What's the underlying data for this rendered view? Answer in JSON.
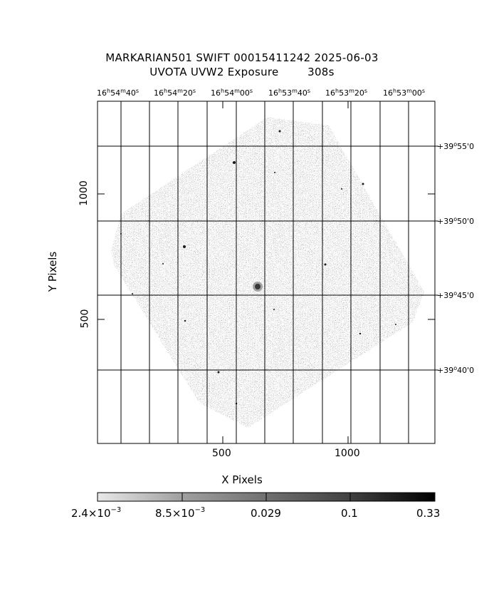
{
  "title_line1": "MARKARIAN501 SWIFT 00015411242 2025-06-03",
  "title_line2": "UVOTA UVW2 Exposure        308s",
  "ra_labels": [
    {
      "h": "16",
      "m": "54",
      "s": "40"
    },
    {
      "h": "16",
      "m": "54",
      "s": "20"
    },
    {
      "h": "16",
      "m": "54",
      "s": "00"
    },
    {
      "h": "16",
      "m": "53",
      "s": "40"
    },
    {
      "h": "16",
      "m": "53",
      "s": "20"
    },
    {
      "h": "16",
      "m": "53",
      "s": "00"
    }
  ],
  "dec_labels": [
    {
      "d": "+39",
      "m": "55",
      "s": "0"
    },
    {
      "d": "+39",
      "m": "50",
      "s": "0"
    },
    {
      "d": "+39",
      "m": "45",
      "s": "0"
    },
    {
      "d": "+39",
      "m": "40",
      "s": "0"
    }
  ],
  "x_axis": {
    "label": "X Pixels",
    "ticks": [
      "500",
      "1000"
    ]
  },
  "y_axis": {
    "label": "Y Pixels",
    "ticks": [
      "1000",
      "500"
    ]
  },
  "colorbar": {
    "ticks": [
      {
        "base": "2.4×10",
        "exp": "−3"
      },
      {
        "base": "8.5×10",
        "exp": "−3"
      },
      {
        "base": "0.029",
        "exp": ""
      },
      {
        "base": "0.1",
        "exp": ""
      },
      {
        "base": "0.33",
        "exp": ""
      }
    ]
  }
}
